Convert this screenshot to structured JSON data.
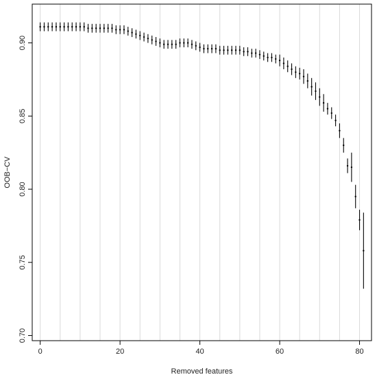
{
  "chart_data": {
    "type": "scatter",
    "title": "",
    "xlabel": "Removed features",
    "ylabel": "OOB−CV",
    "xlim": [
      -2,
      83
    ],
    "ylim": [
      0.6965,
      0.9265
    ],
    "xticks": [
      0,
      20,
      40,
      60,
      80
    ],
    "yticks": [
      0.7,
      0.75,
      0.8,
      0.85,
      0.9
    ],
    "yticks_labels": [
      "0.70",
      "0.75",
      "0.80",
      "0.85",
      "0.90"
    ],
    "grid": "vertical",
    "grid_x": [
      0,
      5,
      10,
      15,
      20,
      25,
      30,
      35,
      40,
      45,
      50,
      55,
      60,
      65,
      70,
      75,
      80
    ],
    "colors": {
      "points": "#000000",
      "grid": "#d9d9d9",
      "axes": "#000000"
    },
    "series": [
      {
        "x": [
          0,
          1,
          2,
          3,
          4,
          5,
          6,
          7,
          8,
          9,
          10,
          11,
          12,
          13,
          14,
          15,
          16,
          17,
          18,
          19,
          20,
          21,
          22,
          23,
          24,
          25,
          26,
          27,
          28,
          29,
          30,
          31,
          32,
          33,
          34,
          35,
          36,
          37,
          38,
          39,
          40,
          41,
          42,
          43,
          44,
          45,
          46,
          47,
          48,
          49,
          50,
          51,
          52,
          53,
          54,
          55,
          56,
          57,
          58,
          59,
          60,
          61,
          62,
          63,
          64,
          65,
          66,
          67,
          68,
          69,
          70,
          71,
          72,
          73,
          74,
          75,
          76,
          77,
          78,
          79,
          80,
          81
        ],
        "y": [
          0.911,
          0.911,
          0.911,
          0.911,
          0.911,
          0.911,
          0.911,
          0.911,
          0.911,
          0.911,
          0.911,
          0.911,
          0.91,
          0.91,
          0.91,
          0.91,
          0.91,
          0.91,
          0.91,
          0.909,
          0.909,
          0.909,
          0.908,
          0.907,
          0.906,
          0.905,
          0.904,
          0.903,
          0.902,
          0.901,
          0.9,
          0.899,
          0.899,
          0.899,
          0.899,
          0.9,
          0.9,
          0.9,
          0.899,
          0.898,
          0.897,
          0.896,
          0.896,
          0.896,
          0.896,
          0.895,
          0.895,
          0.895,
          0.895,
          0.895,
          0.895,
          0.894,
          0.894,
          0.893,
          0.893,
          0.892,
          0.891,
          0.89,
          0.89,
          0.889,
          0.888,
          0.886,
          0.884,
          0.882,
          0.88,
          0.879,
          0.877,
          0.874,
          0.87,
          0.867,
          0.863,
          0.859,
          0.855,
          0.852,
          0.847,
          0.84,
          0.83,
          0.816,
          0.815,
          0.795,
          0.779,
          0.758
        ],
        "error": [
          0.003,
          0.003,
          0.003,
          0.003,
          0.003,
          0.003,
          0.003,
          0.003,
          0.003,
          0.003,
          0.003,
          0.003,
          0.003,
          0.003,
          0.003,
          0.003,
          0.003,
          0.003,
          0.003,
          0.003,
          0.003,
          0.003,
          0.003,
          0.003,
          0.003,
          0.003,
          0.003,
          0.003,
          0.003,
          0.003,
          0.003,
          0.003,
          0.003,
          0.003,
          0.003,
          0.003,
          0.003,
          0.003,
          0.003,
          0.003,
          0.003,
          0.003,
          0.003,
          0.003,
          0.003,
          0.003,
          0.003,
          0.003,
          0.003,
          0.003,
          0.003,
          0.003,
          0.003,
          0.003,
          0.003,
          0.003,
          0.003,
          0.003,
          0.003,
          0.003,
          0.004,
          0.004,
          0.004,
          0.004,
          0.004,
          0.004,
          0.005,
          0.005,
          0.006,
          0.006,
          0.006,
          0.006,
          0.004,
          0.004,
          0.004,
          0.005,
          0.005,
          0.005,
          0.01,
          0.008,
          0.007,
          0.026
        ]
      }
    ]
  }
}
